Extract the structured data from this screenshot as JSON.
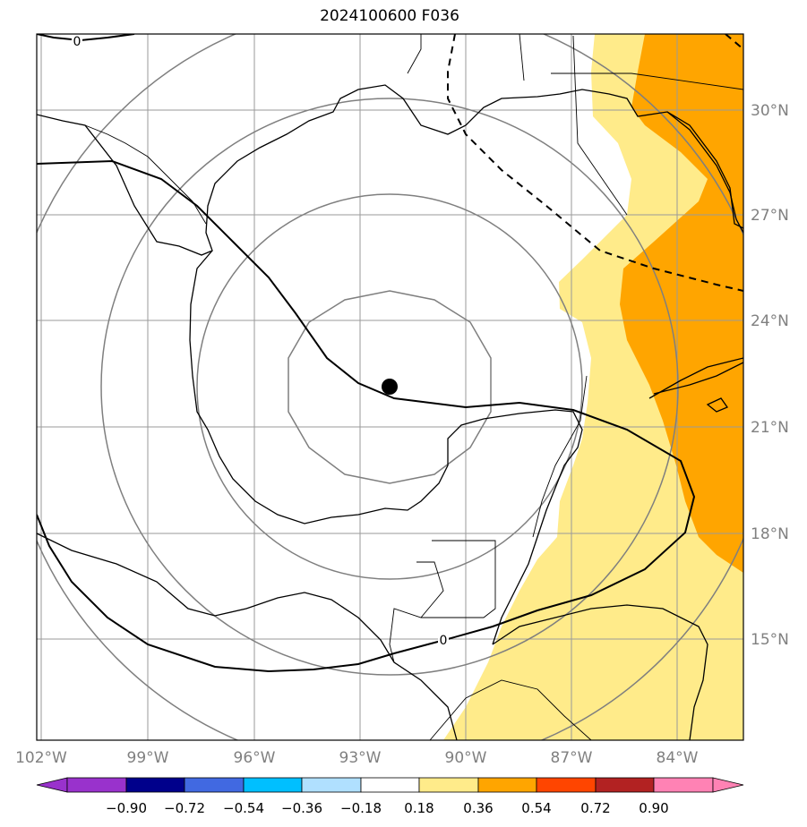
{
  "title": "2024100600 F036",
  "map": {
    "lon_labels": [
      "102°W",
      "99°W",
      "96°W",
      "93°W",
      "90°W",
      "87°W",
      "84°W"
    ],
    "lat_labels": [
      "30°N",
      "27°N",
      "24°N",
      "21°N",
      "18°N",
      "15°N"
    ],
    "contour_labels": [
      "0",
      "0"
    ],
    "center_marker": "storm-center"
  },
  "colorbar": {
    "ticks": [
      "−0.90",
      "−0.72",
      "−0.54",
      "−0.36",
      "−0.18",
      "0.18",
      "0.36",
      "0.54",
      "0.72",
      "0.90"
    ],
    "colors": [
      "#9932cc",
      "#00008b",
      "#4169e1",
      "#00bfff",
      "#b0e0ff",
      "#ffffff",
      "#ffeb8a",
      "#ffa500",
      "#ff4500",
      "#b22222",
      "#ff82b4"
    ]
  }
}
